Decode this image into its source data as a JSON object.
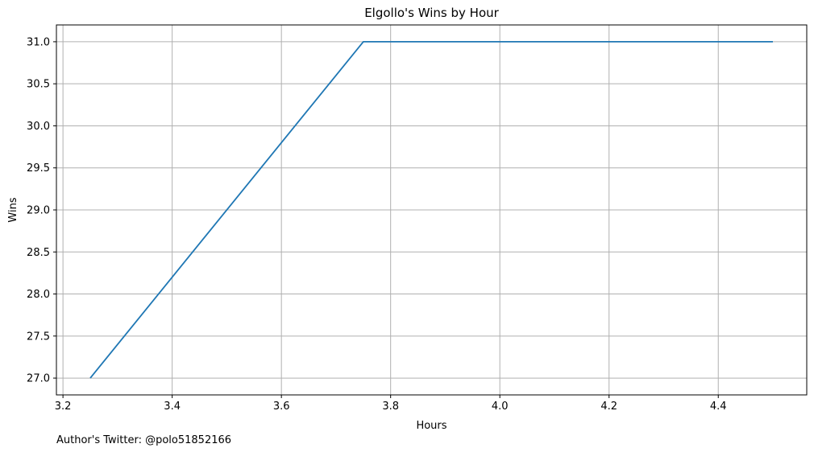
{
  "chart_data": {
    "type": "line",
    "title": "Elgollo's Wins by Hour",
    "xlabel": "Hours",
    "ylabel": "Wins",
    "xlim": [
      3.188,
      4.562
    ],
    "ylim": [
      26.8,
      31.2
    ],
    "xticks": [
      3.2,
      3.4,
      3.6,
      3.8,
      4.0,
      4.2,
      4.4
    ],
    "xtick_labels": [
      "3.2",
      "3.4",
      "3.6",
      "3.8",
      "4.0",
      "4.2",
      "4.4"
    ],
    "yticks": [
      27.0,
      27.5,
      28.0,
      28.5,
      29.0,
      29.5,
      30.0,
      30.5,
      31.0
    ],
    "ytick_labels": [
      "27.0",
      "27.5",
      "28.0",
      "28.5",
      "29.0",
      "29.5",
      "30.0",
      "30.5",
      "31.0"
    ],
    "grid": true,
    "series": [
      {
        "x": [
          3.25,
          3.75,
          4.5
        ],
        "y": [
          27.0,
          31.0,
          31.0
        ],
        "color": "#1f77b4"
      }
    ]
  },
  "footer": {
    "credit": "Author's Twitter: @polo51852166"
  }
}
